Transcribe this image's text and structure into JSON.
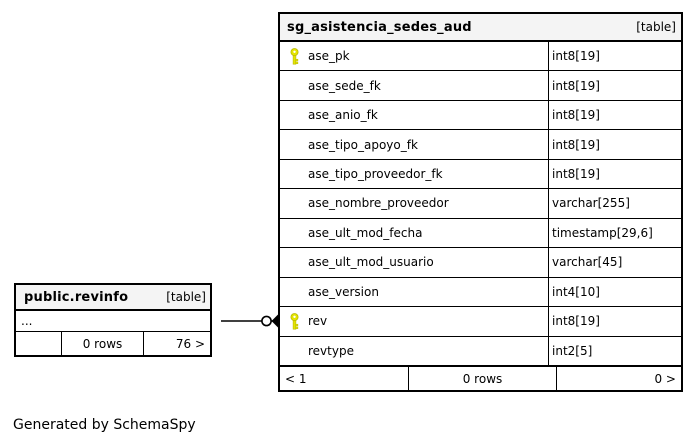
{
  "page": {
    "generated_by": "Generated by SchemaSpy"
  },
  "colors": {
    "background": "#ffffff",
    "header_bg": "#f4f4f4",
    "border": "#000000",
    "key_icon": "#e4e400"
  },
  "main_table": {
    "title": "sg_asistencia_sedes_aud",
    "tag": "[table]",
    "columns": [
      {
        "name": "ase_pk",
        "type": "int8[19]",
        "key": true
      },
      {
        "name": "ase_sede_fk",
        "type": "int8[19]",
        "key": false
      },
      {
        "name": "ase_anio_fk",
        "type": "int8[19]",
        "key": false
      },
      {
        "name": "ase_tipo_apoyo_fk",
        "type": "int8[19]",
        "key": false
      },
      {
        "name": "ase_tipo_proveedor_fk",
        "type": "int8[19]",
        "key": false
      },
      {
        "name": "ase_nombre_proveedor",
        "type": "varchar[255]",
        "key": false
      },
      {
        "name": "ase_ult_mod_fecha",
        "type": "timestamp[29,6]",
        "key": false
      },
      {
        "name": "ase_ult_mod_usuario",
        "type": "varchar[45]",
        "key": false
      },
      {
        "name": "ase_version",
        "type": "int4[10]",
        "key": false
      },
      {
        "name": "rev",
        "type": "int8[19]",
        "key": true
      },
      {
        "name": "revtype",
        "type": "int2[5]",
        "key": false
      }
    ],
    "footer": {
      "left": "< 1",
      "center": "0 rows",
      "right": "0 >"
    }
  },
  "related_table": {
    "title": "public.revinfo",
    "tag": "[table]",
    "body": "...",
    "footer": {
      "left": "",
      "center": "0 rows",
      "right": "76 >"
    }
  }
}
